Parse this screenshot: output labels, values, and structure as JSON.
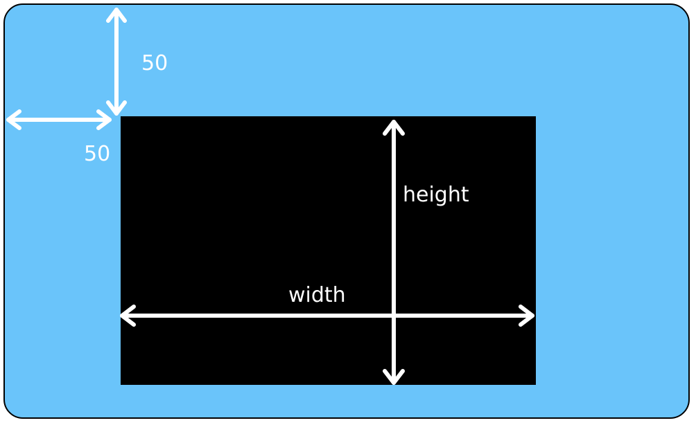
{
  "diagram": {
    "colors": {
      "background": "#6ac4fa",
      "rect": "#000000",
      "arrow": "#ffffff",
      "label": "#ffffff"
    },
    "labels": {
      "top_offset": "50",
      "left_offset": "50",
      "height": "height",
      "width": "width"
    }
  }
}
